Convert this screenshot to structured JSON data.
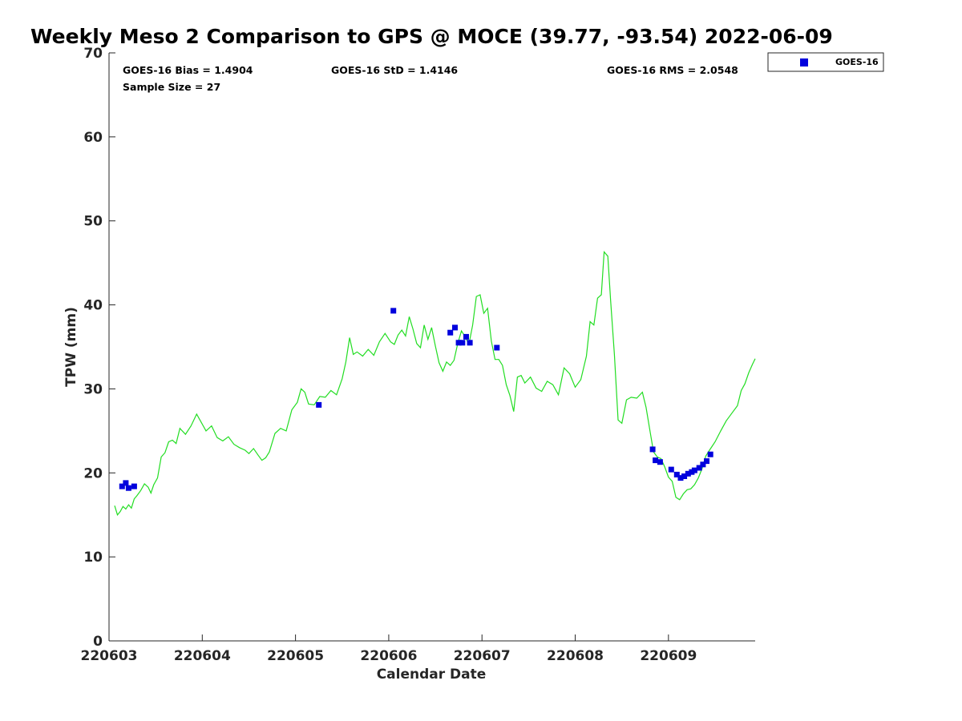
{
  "chart_data": {
    "type": "scatter",
    "title": "Weekly Meso 2 Comparison to GPS @ MOCE (39.77, -93.54) 2022-06-09",
    "xlabel": "Calendar Date",
    "ylabel": "TPW (mm)",
    "xlim": [
      220603,
      220609.93
    ],
    "ylim": [
      0,
      70
    ],
    "x_ticks": [
      "220603",
      "220604",
      "220605",
      "220606",
      "220607",
      "220608",
      "220609"
    ],
    "y_ticks": [
      "0",
      "10",
      "20",
      "30",
      "40",
      "50",
      "60",
      "70"
    ],
    "grid": false,
    "legend": {
      "placement": "top-right-outside",
      "entries": [
        {
          "label": "GOES-16",
          "color": "#0000dd",
          "marker": "square"
        }
      ]
    },
    "stats": {
      "bias": "GOES-16 Bias = 1.4904",
      "std": "GOES-16 StD = 1.4146",
      "rms": "GOES-16 RMS = 2.0548",
      "sample_size": "Sample Size = 27"
    },
    "series": [
      {
        "name": "GOES-16",
        "kind": "scatter",
        "color": "#0000dd",
        "x": [
          220603.14,
          220603.18,
          220603.21,
          220603.27,
          220605.25,
          220606.05,
          220606.66,
          220606.71,
          220606.75,
          220606.79,
          220606.83,
          220606.87,
          220607.16,
          220608.83,
          220608.86,
          220608.91,
          220609.03,
          220609.09,
          220609.13,
          220609.17,
          220609.21,
          220609.25,
          220609.28,
          220609.33,
          220609.37,
          220609.41,
          220609.45
        ],
        "y": [
          18.4,
          18.8,
          18.2,
          18.4,
          28.1,
          39.3,
          36.7,
          37.3,
          35.5,
          35.5,
          36.2,
          35.5,
          34.9,
          22.8,
          21.5,
          21.3,
          20.4,
          19.8,
          19.4,
          19.6,
          19.9,
          20.1,
          20.3,
          20.6,
          21.0,
          21.4,
          22.2
        ]
      },
      {
        "name": "",
        "kind": "line",
        "color": "#22dd22",
        "x": [
          220603.06,
          220603.09,
          220603.12,
          220603.15,
          220603.18,
          220603.21,
          220603.24,
          220603.27,
          220603.3,
          220603.34,
          220603.38,
          220603.42,
          220603.45,
          220603.48,
          220603.52,
          220603.56,
          220603.6,
          220603.64,
          220603.68,
          220603.72,
          220603.76,
          220603.82,
          220603.88,
          220603.94,
          220603.98,
          220604.04,
          220604.1,
          220604.16,
          220604.22,
          220604.28,
          220604.34,
          220604.4,
          220604.46,
          220604.5,
          220604.55,
          220604.6,
          220604.64,
          220604.68,
          220604.72,
          220604.78,
          220604.84,
          220604.9,
          220604.96,
          220605.02,
          220605.06,
          220605.1,
          220605.14,
          220605.2,
          220605.26,
          220605.32,
          220605.38,
          220605.44,
          220605.5,
          220605.54,
          220605.58,
          220605.62,
          220605.66,
          220605.72,
          220605.78,
          220605.84,
          220605.9,
          220605.96,
          220606.02,
          220606.06,
          220606.1,
          220606.14,
          220606.18,
          220606.22,
          220606.26,
          220606.3,
          220606.34,
          220606.38,
          220606.42,
          220606.46,
          220606.5,
          220606.54,
          220606.58,
          220606.62,
          220606.66,
          220606.7,
          220606.74,
          220606.78,
          220606.82,
          220606.86,
          220606.9,
          220606.94,
          220606.98,
          220607.02,
          220607.06,
          220607.1,
          220607.14,
          220607.18,
          220607.22,
          220607.26,
          220607.3,
          220607.34,
          220607.38,
          220607.42,
          220607.46,
          220607.52,
          220607.58,
          220607.64,
          220607.7,
          220607.76,
          220607.82,
          220607.88,
          220607.94,
          220608.0,
          220608.06,
          220608.12,
          220608.16,
          220608.2,
          220608.24,
          220608.28,
          220608.31,
          220608.35,
          220608.38,
          220608.42,
          220608.46,
          220608.5,
          220608.55,
          220608.6,
          220608.66,
          220608.72,
          220608.76,
          220608.8,
          220608.84,
          220608.88,
          220608.92,
          220608.96,
          220609.0,
          220609.04,
          220609.08,
          220609.12,
          220609.16,
          220609.2,
          220609.24,
          220609.28,
          220609.32,
          220609.36,
          220609.4,
          220609.44,
          220609.5,
          220609.56,
          220609.62,
          220609.68,
          220609.74,
          220609.78,
          220609.82,
          220609.86,
          220609.9,
          220609.93
        ],
        "y": [
          16.1,
          15.0,
          15.4,
          16.0,
          15.7,
          16.2,
          15.8,
          16.9,
          17.3,
          17.9,
          18.7,
          18.3,
          17.6,
          18.6,
          19.4,
          21.9,
          22.4,
          23.7,
          23.9,
          23.5,
          25.3,
          24.6,
          25.6,
          27.0,
          26.2,
          25.0,
          25.6,
          24.2,
          23.8,
          24.3,
          23.4,
          23.0,
          22.7,
          22.3,
          22.9,
          22.1,
          21.5,
          21.8,
          22.5,
          24.7,
          25.3,
          25.0,
          27.5,
          28.4,
          30.0,
          29.6,
          28.2,
          28.1,
          29.1,
          29.0,
          29.8,
          29.3,
          31.2,
          33.2,
          36.1,
          34.1,
          34.4,
          33.9,
          34.7,
          34.0,
          35.6,
          36.6,
          35.6,
          35.3,
          36.4,
          37.0,
          36.3,
          38.6,
          37.1,
          35.4,
          34.9,
          37.6,
          35.9,
          37.3,
          35.1,
          33.1,
          32.1,
          33.2,
          32.8,
          33.4,
          35.4,
          36.9,
          36.2,
          35.3,
          37.6,
          41.0,
          41.2,
          39.0,
          39.6,
          35.7,
          33.5,
          33.5,
          32.8,
          30.5,
          29.2,
          27.3,
          31.4,
          31.6,
          30.7,
          31.4,
          30.1,
          29.7,
          30.9,
          30.5,
          29.3,
          32.5,
          31.8,
          30.2,
          31.1,
          33.9,
          38.0,
          37.6,
          40.8,
          41.2,
          46.3,
          45.8,
          40.5,
          34.1,
          26.3,
          25.9,
          28.7,
          29.0,
          28.9,
          29.6,
          27.8,
          25.1,
          22.5,
          21.9,
          21.7,
          20.7,
          19.5,
          19.0,
          17.1,
          16.8,
          17.5,
          18.0,
          18.1,
          18.6,
          19.4,
          20.5,
          22.0,
          22.7,
          23.7,
          25.0,
          26.2,
          27.1,
          28.0,
          29.8,
          30.6,
          31.9,
          32.9,
          33.6
        ]
      }
    ]
  }
}
